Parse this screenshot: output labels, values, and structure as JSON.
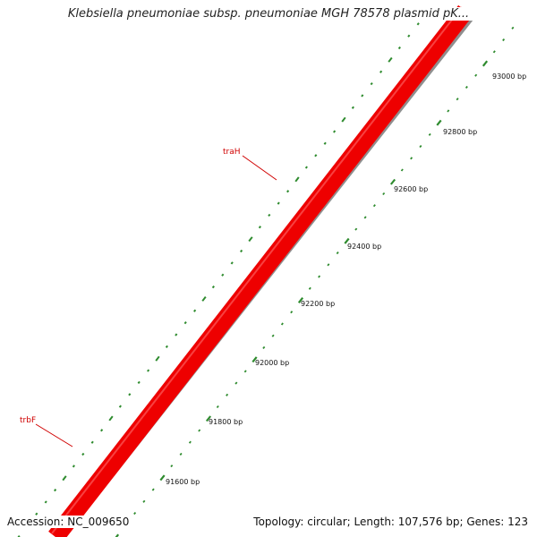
{
  "title": "Klebsiella pneumoniae subsp. pneumoniae MGH 78578 plasmid pK...",
  "footer": {
    "accession": "Accession: NC_009650",
    "summary": "Topology: circular; Length: 107,576 bp; Genes: 123"
  },
  "colors": {
    "backbone": "#ff0000",
    "backbone_shadow": "#909090",
    "cds_ticks": "#2e8b2e",
    "gene_label": "#d00000"
  },
  "scale": {
    "labels": [
      "91600 bp",
      "91800 bp",
      "92000 bp",
      "92200 bp",
      "92400 bp",
      "92600 bp",
      "92800 bp",
      "93000 bp"
    ]
  },
  "genes": [
    {
      "name": "traH",
      "strand": "forward"
    },
    {
      "name": "trbF",
      "strand": "forward"
    }
  ]
}
